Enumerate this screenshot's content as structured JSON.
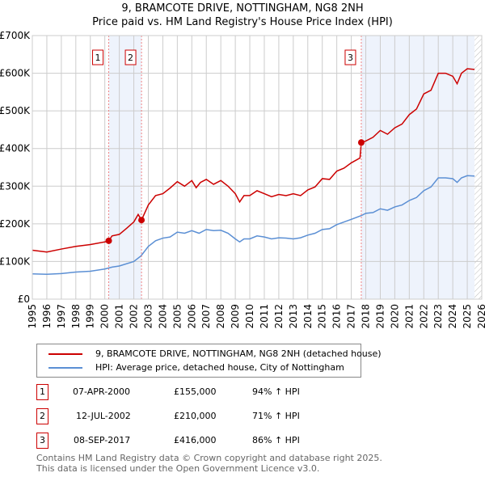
{
  "title": "9, BRAMCOTE DRIVE, NOTTINGHAM, NG8 2NH",
  "subtitle": "Price paid vs. HM Land Registry's House Price Index (HPI)",
  "chart_data": {
    "type": "line",
    "xlim": [
      1995,
      2026
    ],
    "ylim": [
      0,
      700000
    ],
    "x_ticks": [
      "1995",
      "1996",
      "1997",
      "1998",
      "1999",
      "2000",
      "2001",
      "2002",
      "2003",
      "2004",
      "2005",
      "2006",
      "2007",
      "2008",
      "2009",
      "2010",
      "2011",
      "2012",
      "2013",
      "2014",
      "2015",
      "2016",
      "2017",
      "2018",
      "2019",
      "2020",
      "2021",
      "2022",
      "2023",
      "2024",
      "2025",
      "2026"
    ],
    "y_ticks": [
      {
        "v": 0,
        "label": "£0"
      },
      {
        "v": 100000,
        "label": "£100K"
      },
      {
        "v": 200000,
        "label": "£200K"
      },
      {
        "v": 300000,
        "label": "£300K"
      },
      {
        "v": 400000,
        "label": "£400K"
      },
      {
        "v": 500000,
        "label": "£500K"
      },
      {
        "v": 600000,
        "label": "£600K"
      },
      {
        "v": 700000,
        "label": "£700K"
      }
    ],
    "colors": {
      "property": "#cc0000",
      "hpi": "#5b8fd4",
      "shade": "#eef3fc"
    },
    "shaded": [
      [
        2000.27,
        2002.53
      ],
      [
        2017.69,
        2025.5
      ]
    ],
    "hatched_from": 2025.5,
    "series": [
      {
        "name": "9, BRAMCOTE DRIVE, NOTTINGHAM, NG8 2NH (detached house)",
        "key": "property",
        "x": [
          1995,
          1996,
          1997,
          1998,
          1999,
          2000,
          2000.27,
          2000.5,
          2001,
          2001.5,
          2002,
          2002.3,
          2002.53,
          2003,
          2003.5,
          2004,
          2004.5,
          2005,
          2005.5,
          2006,
          2006.3,
          2006.6,
          2007,
          2007.5,
          2008,
          2008.5,
          2009,
          2009.3,
          2009.6,
          2010,
          2010.5,
          2011,
          2011.5,
          2012,
          2012.5,
          2013,
          2013.5,
          2014,
          2014.5,
          2015,
          2015.5,
          2016,
          2016.5,
          2017,
          2017.6,
          2017.69,
          2018,
          2018.5,
          2019,
          2019.5,
          2020,
          2020.5,
          2021,
          2021.5,
          2022,
          2022.5,
          2023,
          2023.5,
          2024,
          2024.3,
          2024.6,
          2025,
          2025.5
        ],
        "y": [
          130000,
          125000,
          133000,
          140000,
          145000,
          152000,
          155000,
          168000,
          172000,
          188000,
          205000,
          225000,
          210000,
          250000,
          275000,
          280000,
          295000,
          312000,
          300000,
          315000,
          296000,
          310000,
          318000,
          305000,
          315000,
          300000,
          280000,
          258000,
          275000,
          275000,
          288000,
          280000,
          272000,
          278000,
          275000,
          280000,
          275000,
          290000,
          298000,
          320000,
          318000,
          340000,
          348000,
          362000,
          375000,
          416000,
          420000,
          430000,
          448000,
          438000,
          455000,
          465000,
          490000,
          505000,
          545000,
          555000,
          600000,
          600000,
          592000,
          572000,
          600000,
          612000,
          610000
        ]
      },
      {
        "name": "HPI: Average price, detached house, City of Nottingham",
        "key": "hpi",
        "x": [
          1995,
          1996,
          1997,
          1998,
          1999,
          2000,
          2000.5,
          2001,
          2002,
          2002.5,
          2003,
          2003.5,
          2004,
          2004.5,
          2005,
          2005.5,
          2006,
          2006.5,
          2007,
          2007.5,
          2008,
          2008.5,
          2009,
          2009.3,
          2009.6,
          2010,
          2010.5,
          2011,
          2011.5,
          2012,
          2012.5,
          2013,
          2013.5,
          2014,
          2014.5,
          2015,
          2015.5,
          2016,
          2016.5,
          2017,
          2017.7,
          2018,
          2018.5,
          2019,
          2019.5,
          2020,
          2020.5,
          2021,
          2021.5,
          2022,
          2022.5,
          2023,
          2023.5,
          2024,
          2024.3,
          2024.6,
          2025,
          2025.5
        ],
        "y": [
          67000,
          66000,
          68000,
          72000,
          74000,
          80000,
          85000,
          88000,
          100000,
          115000,
          140000,
          155000,
          162000,
          165000,
          178000,
          175000,
          182000,
          175000,
          185000,
          182000,
          183000,
          175000,
          160000,
          152000,
          160000,
          160000,
          168000,
          165000,
          160000,
          163000,
          162000,
          160000,
          163000,
          170000,
          175000,
          185000,
          187000,
          198000,
          205000,
          212000,
          222000,
          228000,
          230000,
          240000,
          236000,
          245000,
          250000,
          262000,
          270000,
          288000,
          298000,
          322000,
          322000,
          320000,
          310000,
          322000,
          328000,
          327000
        ]
      }
    ],
    "sales": [
      {
        "n": "1",
        "x": 2000.27,
        "y": 155000,
        "date": "07-APR-2000",
        "price": "£155,000",
        "hpi": "94% ↑ HPI"
      },
      {
        "n": "2",
        "x": 2002.53,
        "y": 210000,
        "date": "12-JUL-2002",
        "price": "£210,000",
        "hpi": "71% ↑ HPI"
      },
      {
        "n": "3",
        "x": 2017.69,
        "y": 416000,
        "date": "08-SEP-2017",
        "price": "£416,000",
        "hpi": "86% ↑ HPI"
      }
    ]
  },
  "footer": [
    "Contains HM Land Registry data © Crown copyright and database right 2025.",
    "This data is licensed under the Open Government Licence v3.0."
  ]
}
